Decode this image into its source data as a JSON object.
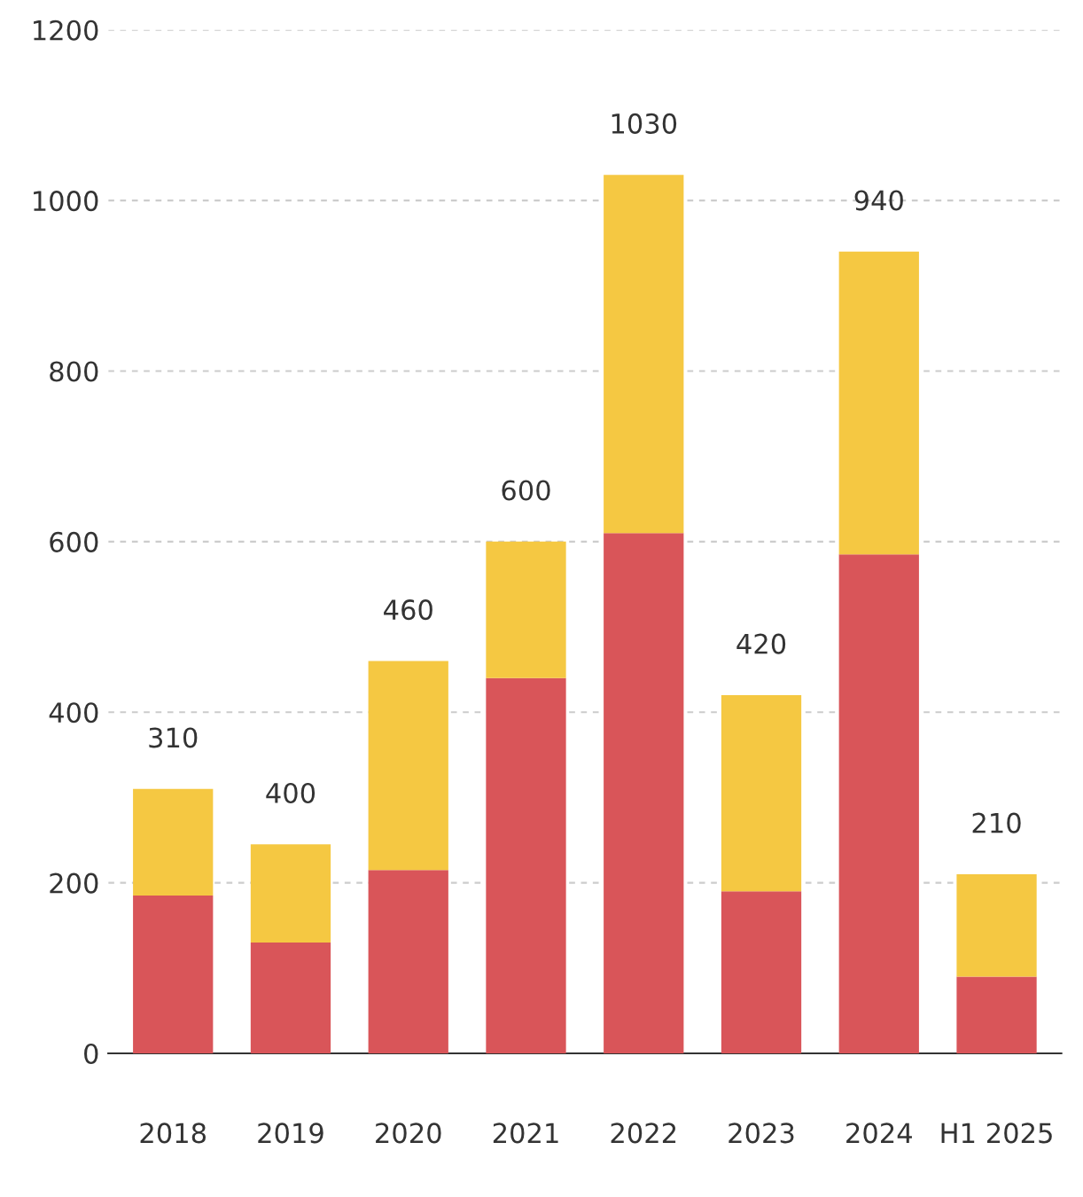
{
  "chart_data": {
    "type": "bar",
    "stacked": true,
    "categories": [
      "2018",
      "2019",
      "2020",
      "2021",
      "2022",
      "2023",
      "2024",
      "H1 2025"
    ],
    "series": [
      {
        "color": "#d95559",
        "values": [
          185,
          130,
          215,
          440,
          610,
          190,
          585,
          90
        ]
      },
      {
        "color": "#f5c842",
        "values": [
          125,
          115,
          245,
          160,
          420,
          230,
          355,
          120
        ]
      }
    ],
    "annotations": [
      "310",
      "400",
      "460",
      "600",
      "1030",
      "420",
      "940",
      "210"
    ],
    "ylim": [
      0,
      1200
    ],
    "yticks": [
      0,
      200,
      400,
      600,
      800,
      1000,
      1200
    ],
    "grid": "y",
    "legend": false
  }
}
